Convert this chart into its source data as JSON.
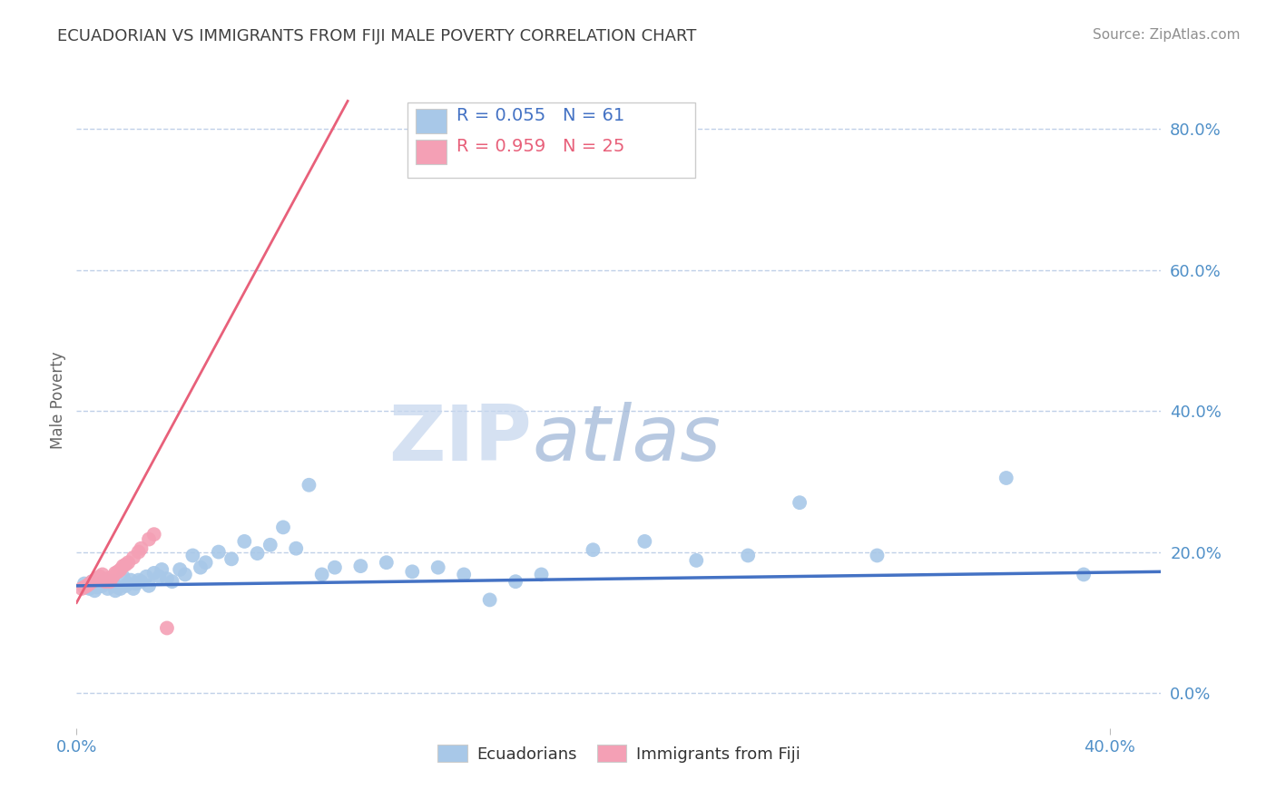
{
  "title": "ECUADORIAN VS IMMIGRANTS FROM FIJI MALE POVERTY CORRELATION CHART",
  "source": "Source: ZipAtlas.com",
  "ylabel": "Male Poverty",
  "xlim": [
    0.0,
    0.42
  ],
  "ylim": [
    -0.05,
    0.88
  ],
  "yticks": [
    0.0,
    0.2,
    0.4,
    0.6,
    0.8
  ],
  "xticks": [
    0.0,
    0.4
  ],
  "watermark_zip": "ZIP",
  "watermark_atlas": "atlas",
  "legend_r1": "R = 0.055",
  "legend_n1": "N = 61",
  "legend_r2": "R = 0.959",
  "legend_n2": "N = 25",
  "blue_scatter_x": [
    0.003,
    0.004,
    0.005,
    0.006,
    0.007,
    0.008,
    0.009,
    0.01,
    0.011,
    0.012,
    0.013,
    0.014,
    0.015,
    0.016,
    0.017,
    0.018,
    0.019,
    0.02,
    0.021,
    0.022,
    0.023,
    0.024,
    0.025,
    0.027,
    0.028,
    0.03,
    0.032,
    0.033,
    0.035,
    0.037,
    0.04,
    0.042,
    0.045,
    0.048,
    0.05,
    0.055,
    0.06,
    0.065,
    0.07,
    0.075,
    0.08,
    0.085,
    0.09,
    0.095,
    0.1,
    0.11,
    0.12,
    0.13,
    0.14,
    0.15,
    0.16,
    0.17,
    0.18,
    0.2,
    0.22,
    0.24,
    0.26,
    0.28,
    0.31,
    0.36,
    0.39
  ],
  "blue_scatter_y": [
    0.155,
    0.15,
    0.148,
    0.158,
    0.145,
    0.15,
    0.155,
    0.152,
    0.16,
    0.148,
    0.155,
    0.158,
    0.145,
    0.15,
    0.148,
    0.165,
    0.152,
    0.155,
    0.16,
    0.148,
    0.155,
    0.16,
    0.158,
    0.165,
    0.152,
    0.17,
    0.165,
    0.175,
    0.162,
    0.158,
    0.175,
    0.168,
    0.195,
    0.178,
    0.185,
    0.2,
    0.19,
    0.215,
    0.198,
    0.21,
    0.235,
    0.205,
    0.295,
    0.168,
    0.178,
    0.18,
    0.185,
    0.172,
    0.178,
    0.168,
    0.132,
    0.158,
    0.168,
    0.203,
    0.215,
    0.188,
    0.195,
    0.27,
    0.195,
    0.305,
    0.168
  ],
  "pink_scatter_x": [
    0.002,
    0.003,
    0.004,
    0.005,
    0.006,
    0.007,
    0.008,
    0.009,
    0.01,
    0.011,
    0.012,
    0.013,
    0.014,
    0.015,
    0.016,
    0.017,
    0.018,
    0.019,
    0.02,
    0.022,
    0.024,
    0.025,
    0.028,
    0.03,
    0.035
  ],
  "pink_scatter_y": [
    0.148,
    0.15,
    0.152,
    0.155,
    0.158,
    0.16,
    0.162,
    0.165,
    0.168,
    0.158,
    0.162,
    0.158,
    0.165,
    0.17,
    0.172,
    0.175,
    0.18,
    0.182,
    0.185,
    0.192,
    0.2,
    0.205,
    0.218,
    0.225,
    0.092
  ],
  "blue_line_x": [
    0.0,
    0.42
  ],
  "blue_line_y": [
    0.152,
    0.172
  ],
  "pink_line_x": [
    0.0,
    0.105
  ],
  "pink_line_y": [
    0.128,
    0.84
  ],
  "blue_color": "#a8c8e8",
  "blue_line_color": "#4472c4",
  "pink_color": "#f4a0b5",
  "pink_line_color": "#e8607a",
  "background_color": "#ffffff",
  "grid_color": "#c0d0e8",
  "tick_color": "#5090c8",
  "title_color": "#404040",
  "source_color": "#909090",
  "legend_border_color": "#cccccc",
  "bottom_legend_label1": "Ecuadorians",
  "bottom_legend_label2": "Immigrants from Fiji"
}
